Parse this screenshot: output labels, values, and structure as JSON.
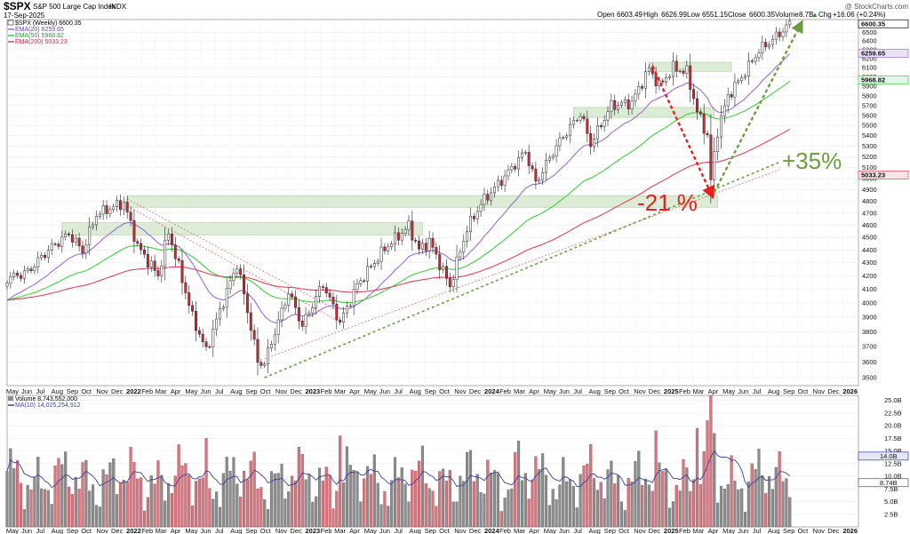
{
  "header": {
    "symbol": "$SPX",
    "name": "S&P 500 Large Cap Index",
    "exchange": "INDX",
    "date": "17-Sep-2025",
    "watermark": "@ StockCharts.com",
    "ohlc": {
      "open_label": "Open",
      "open": "6603.49",
      "high_label": "High",
      "high": "6626.99",
      "low_label": "Low",
      "low": "6551.15",
      "close_label": "Close",
      "close": "6600.35",
      "volume_label": "Volume",
      "volume": "8.7B",
      "chg_label": "Chg",
      "chg": "+16.06 (+0.24%)",
      "arrow": "▲"
    }
  },
  "legend": {
    "price": "$SPX (Weekly) 6600.35",
    "ema20": "EMA(20) 6259.65",
    "ema50": "EMA(50) 5968.82",
    "ema200": "EMA(200) 5033.23",
    "volume": "Volume 8,743,552,000",
    "ma10": "MA(10) 14,025,254,912"
  },
  "colors": {
    "up": "#ffffff",
    "down": "#cc2936",
    "candle_outline": "#222222",
    "ema20": "#9b6bd6",
    "ema50": "#3fcf3f",
    "ema200": "#e0455b",
    "vol_up": "#8c8c8c",
    "vol_down": "#d7767e",
    "ma10": "#3a3f9e",
    "zone_fill": "#d6e9cf",
    "zone_stroke": "#9cc48d",
    "red_annot": "#e8201c",
    "green_annot": "#6b9e3e"
  },
  "annotations": {
    "drop": "-21 %",
    "rise": "+35%"
  },
  "price_axis": {
    "ticks": [
      "3500",
      "3600",
      "3700",
      "3800",
      "3900",
      "4000",
      "4100",
      "4200",
      "4300",
      "4400",
      "4500",
      "4600",
      "4700",
      "4800",
      "4900",
      "5000",
      "5100",
      "5200",
      "5300",
      "5400",
      "5500",
      "5600",
      "5700",
      "5800",
      "5900",
      "6000",
      "6100",
      "6200",
      "6300",
      "6400",
      "6500"
    ],
    "flags": [
      {
        "label": "6600.35",
        "value": 6600,
        "bg": "#ffffff",
        "border": "#000000"
      },
      {
        "label": "6259.65",
        "value": 6260,
        "bg": "#ece3f7",
        "border": "#9b6bd6"
      },
      {
        "label": "5968.82",
        "value": 5969,
        "bg": "#e3f7e3",
        "border": "#3fcf3f"
      },
      {
        "label": "5033.23",
        "value": 5033,
        "bg": "#fbe3e7",
        "border": "#e0455b"
      }
    ]
  },
  "volume_axis": {
    "ticks": [
      "2.5B",
      "5.0B",
      "7.5B",
      "10.0B",
      "12.5B",
      "15.0B",
      "17.5B",
      "20.0B",
      "22.5B",
      "25.0B"
    ],
    "flags": [
      {
        "label": "14.0B",
        "value": 14.0,
        "bg": "#e6e7f5",
        "border": "#3a3f9e"
      },
      {
        "label": "8.74B",
        "value": 8.74,
        "bg": "#ffffff",
        "border": "#555555"
      }
    ]
  },
  "x_axis": {
    "labels": [
      "May",
      "Jun",
      "Jul",
      "Aug",
      "Sep",
      "Oct",
      "Nov",
      "Dec",
      "2022",
      "Feb",
      "Mar",
      "Apr",
      "May",
      "Jun",
      "Jul",
      "Aug",
      "Sep",
      "Oct",
      "Nov",
      "Dec",
      "2023",
      "Feb",
      "Mar",
      "Apr",
      "May",
      "Jun",
      "Jul",
      "Aug",
      "Sep",
      "Oct",
      "Nov",
      "Dec",
      "2024",
      "Feb",
      "Mar",
      "Apr",
      "May",
      "Jun",
      "Jul",
      "Aug",
      "Sep",
      "Oct",
      "Nov",
      "Dec",
      "2025",
      "Feb",
      "Mar",
      "Apr",
      "May",
      "Jun",
      "Jul",
      "Aug",
      "Sep",
      "Oct",
      "Nov",
      "Dec",
      "2026"
    ]
  },
  "chart_data": {
    "type": "candlestick",
    "timeframe": "weekly",
    "price_scale": "log",
    "price_range": [
      3450,
      6650
    ],
    "volume_range_billions": [
      0,
      26
    ],
    "anchors": [
      {
        "date": "2021-05-03",
        "close": 4180
      },
      {
        "date": "2021-06-14",
        "close": 4230
      },
      {
        "date": "2021-07-26",
        "close": 4400
      },
      {
        "date": "2021-09-06",
        "close": 4530
      },
      {
        "date": "2021-10-04",
        "close": 4390
      },
      {
        "date": "2021-11-01",
        "close": 4690
      },
      {
        "date": "2021-12-27",
        "close": 4790
      },
      {
        "date": "2022-01-24",
        "close": 4430
      },
      {
        "date": "2022-03-07",
        "close": 4200
      },
      {
        "date": "2022-03-28",
        "close": 4540
      },
      {
        "date": "2022-05-16",
        "close": 3900
      },
      {
        "date": "2022-06-13",
        "close": 3670
      },
      {
        "date": "2022-08-15",
        "close": 4290
      },
      {
        "date": "2022-09-26",
        "close": 3600
      },
      {
        "date": "2022-10-10",
        "close": 3590
      },
      {
        "date": "2022-11-28",
        "close": 4080
      },
      {
        "date": "2022-12-26",
        "close": 3840
      },
      {
        "date": "2023-02-06",
        "close": 4140
      },
      {
        "date": "2023-03-13",
        "close": 3860
      },
      {
        "date": "2023-04-17",
        "close": 4130
      },
      {
        "date": "2023-06-12",
        "close": 4410
      },
      {
        "date": "2023-07-31",
        "close": 4590
      },
      {
        "date": "2023-08-21",
        "close": 4400
      },
      {
        "date": "2023-09-11",
        "close": 4470
      },
      {
        "date": "2023-10-23",
        "close": 4120
      },
      {
        "date": "2023-11-27",
        "close": 4570
      },
      {
        "date": "2023-12-25",
        "close": 4780
      },
      {
        "date": "2024-02-12",
        "close": 5020
      },
      {
        "date": "2024-03-25",
        "close": 5250
      },
      {
        "date": "2024-04-15",
        "close": 4960
      },
      {
        "date": "2024-05-27",
        "close": 5300
      },
      {
        "date": "2024-07-15",
        "close": 5620
      },
      {
        "date": "2024-08-05",
        "close": 5320
      },
      {
        "date": "2024-09-16",
        "close": 5700
      },
      {
        "date": "2024-10-28",
        "close": 5730
      },
      {
        "date": "2024-12-02",
        "close": 6090
      },
      {
        "date": "2024-12-23",
        "close": 5900
      },
      {
        "date": "2025-01-20",
        "close": 6100
      },
      {
        "date": "2025-02-17",
        "close": 6050
      },
      {
        "date": "2025-03-10",
        "close": 5640
      },
      {
        "date": "2025-03-31",
        "close": 5400
      },
      {
        "date": "2025-04-07",
        "close": 4980
      },
      {
        "date": "2025-04-21",
        "close": 5450
      },
      {
        "date": "2025-05-12",
        "close": 5800
      },
      {
        "date": "2025-06-09",
        "close": 6000
      },
      {
        "date": "2025-07-14",
        "close": 6290
      },
      {
        "date": "2025-08-18",
        "close": 6450
      },
      {
        "date": "2025-09-15",
        "close": 6600
      }
    ],
    "volume_spikes": [
      {
        "date": "2025-04-07",
        "volume_billions": 26.0
      },
      {
        "date": "2025-03-31",
        "volume_billions": 21.0
      },
      {
        "date": "2025-04-14",
        "volume_billions": 18.5
      },
      {
        "date": "2024-12-16",
        "volume_billions": 19.0
      },
      {
        "date": "2025-03-10",
        "volume_billions": 19.5
      },
      {
        "date": "2024-03-11",
        "volume_billions": 17.0
      },
      {
        "date": "2022-06-13",
        "volume_billions": 17.5
      },
      {
        "date": "2023-03-13",
        "volume_billions": 18.0
      }
    ],
    "support_zones": [
      {
        "from": "2021-08-23",
        "to": "2023-08-28",
        "low": 4520,
        "high": 4620
      },
      {
        "from": "2022-01-03",
        "to": "2025-04-21",
        "low": 4750,
        "high": 4850
      },
      {
        "from": "2024-07-01",
        "to": "2025-04-14",
        "low": 5580,
        "high": 5680
      },
      {
        "from": "2024-12-02",
        "to": "2025-05-19",
        "low": 6060,
        "high": 6160
      }
    ]
  }
}
